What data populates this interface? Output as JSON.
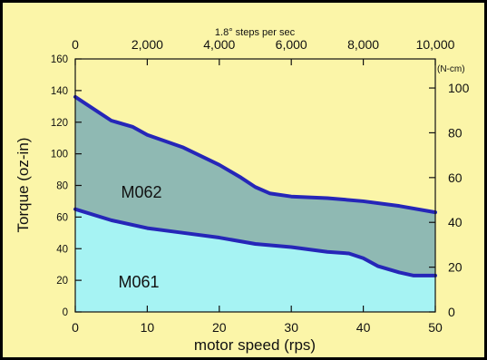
{
  "chart_data": {
    "type": "area",
    "background": "#fbf5a8",
    "top_axis": {
      "label": "1.8° steps per sec",
      "ticks": [
        0,
        2000,
        4000,
        6000,
        8000,
        10000
      ],
      "tick_labels": [
        "0",
        "2,000",
        "4,000",
        "6,000",
        "8,000",
        "10,000"
      ],
      "range": [
        0,
        10000
      ]
    },
    "x_axis": {
      "label": "motor speed  (rps)",
      "ticks": [
        0,
        10,
        20,
        30,
        40,
        50
      ],
      "tick_labels": [
        "0",
        "10",
        "20",
        "30",
        "40",
        "50"
      ],
      "range": [
        0,
        50
      ]
    },
    "y_left": {
      "label": "Torque  (oz-in)",
      "ticks": [
        0,
        20,
        40,
        60,
        80,
        100,
        120,
        140,
        160
      ],
      "tick_labels": [
        "0",
        "20",
        "40",
        "60",
        "80",
        "100",
        "120",
        "140",
        "160"
      ],
      "range": [
        0,
        160
      ]
    },
    "y_right": {
      "unit": "(N-cm)",
      "ticks": [
        0,
        20,
        40,
        60,
        80,
        100
      ],
      "tick_labels": [
        "0",
        "20",
        "40",
        "60",
        "80",
        "100"
      ],
      "range": [
        0,
        112.98
      ]
    },
    "series": [
      {
        "name": "M062",
        "color": "#8fb9b3",
        "line_color": "#2626b8",
        "x": [
          0,
          2,
          5,
          8,
          10,
          15,
          20,
          23,
          25,
          27,
          30,
          35,
          40,
          45,
          50
        ],
        "y": [
          136,
          130,
          121,
          117,
          112,
          104,
          93,
          85,
          79,
          75,
          73,
          72,
          70,
          67,
          63
        ]
      },
      {
        "name": "M061",
        "color": "#a6f3f3",
        "line_color": "#2626b8",
        "x": [
          0,
          5,
          10,
          15,
          20,
          25,
          30,
          35,
          38,
          40,
          42,
          45,
          47,
          50
        ],
        "y": [
          65,
          58,
          53,
          50,
          47,
          43,
          41,
          38,
          37,
          34,
          29,
          25,
          23,
          23
        ]
      }
    ]
  }
}
